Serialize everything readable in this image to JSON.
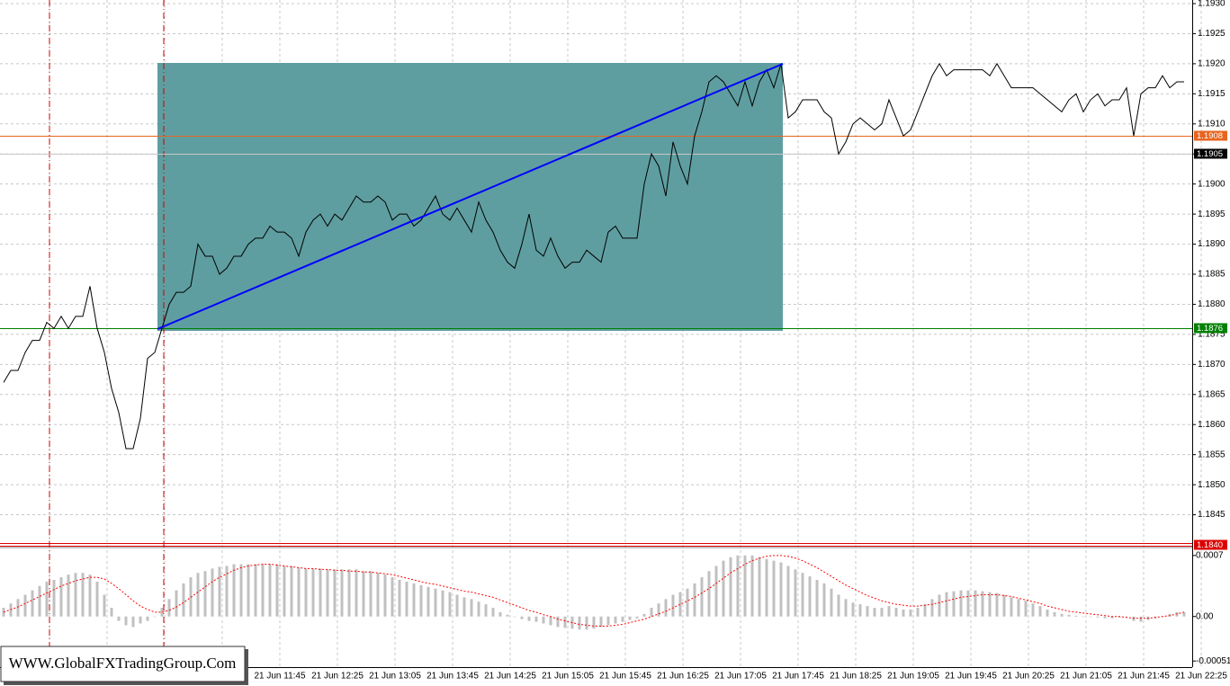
{
  "chart_data": {
    "type": "line",
    "categories": [
      null,
      null,
      null,
      null,
      null,
      null,
      null,
      null,
      null,
      null,
      null,
      null,
      null,
      null,
      null,
      null,
      null,
      null,
      null,
      null,
      null,
      null,
      null,
      null,
      null,
      null,
      null,
      null,
      null,
      null,
      null,
      null,
      null,
      null,
      null,
      "21 Jun 11:45",
      null,
      null,
      null,
      null,
      null,
      null,
      null,
      "21 Jun 12:25",
      null,
      null,
      null,
      null,
      null,
      null,
      null,
      "21 Jun 13:05",
      null,
      null,
      null,
      null,
      null,
      null,
      null,
      "21 Jun 13:45",
      null,
      null,
      null,
      null,
      null,
      null,
      null,
      "21 Jun 14:25",
      null,
      null,
      null,
      null,
      null,
      null,
      null,
      "21 Jun 15:05",
      null,
      null,
      null,
      null,
      null,
      null,
      null,
      "21 Jun 15:45",
      null,
      null,
      null,
      null,
      null,
      null,
      null,
      "21 Jun 16:25",
      null,
      null,
      null,
      null,
      null,
      null,
      null,
      "21 Jun 17:05",
      null,
      null,
      null,
      null,
      null,
      null,
      null,
      "21 Jun 17:45",
      null,
      null,
      null,
      null,
      null,
      null,
      null,
      "21 Jun 18:25",
      null,
      null,
      null,
      null,
      null,
      null,
      null,
      "21 Jun 19:05",
      null,
      null,
      null,
      null,
      null,
      null,
      null,
      "21 Jun 19:45",
      null,
      null,
      null,
      null,
      null,
      null,
      null,
      "21 Jun 20:25",
      null,
      null,
      null,
      null,
      null,
      null,
      null,
      "21 Jun 21:05",
      null,
      null,
      null,
      null,
      null,
      null,
      null,
      "21 Jun 21:45",
      null,
      null,
      null,
      null,
      null,
      null,
      null,
      "21 Jun 22:25",
      null
    ],
    "series": [
      {
        "color": "#000000",
        "values": [
          1.1867,
          1.1869,
          1.1869,
          1.1872,
          1.1874,
          1.1874,
          1.1877,
          1.1876,
          1.1878,
          1.1876,
          1.1878,
          1.1878,
          1.1883,
          1.1876,
          1.1872,
          1.1866,
          1.1862,
          1.1856,
          1.1856,
          1.1861,
          1.1871,
          1.1872,
          1.1876,
          1.188,
          1.1882,
          1.1882,
          1.1883,
          1.189,
          1.1888,
          1.1888,
          1.1885,
          1.1886,
          1.1888,
          1.1888,
          1.189,
          1.1891,
          1.1891,
          1.1893,
          1.1892,
          1.1892,
          1.1891,
          1.1888,
          1.1892,
          1.1894,
          1.1895,
          1.1893,
          1.1895,
          1.1894,
          1.1896,
          1.1898,
          1.1897,
          1.1897,
          1.1898,
          1.1897,
          1.1894,
          1.1895,
          1.1895,
          1.1893,
          1.1894,
          1.1896,
          1.1898,
          1.1895,
          1.1894,
          1.1896,
          1.1894,
          1.1892,
          1.1897,
          1.1894,
          1.1892,
          1.1889,
          1.1887,
          1.1886,
          1.189,
          1.1895,
          1.1889,
          1.1888,
          1.1891,
          1.1888,
          1.1886,
          1.1887,
          1.1887,
          1.1889,
          1.1888,
          1.1887,
          1.1892,
          1.1893,
          1.1891,
          1.1891,
          1.1891,
          1.19,
          1.1905,
          1.1903,
          1.1898,
          1.1907,
          1.1903,
          1.19,
          1.1908,
          1.1912,
          1.1917,
          1.1918,
          1.1917,
          1.1915,
          1.1913,
          1.1917,
          1.1913,
          1.1917,
          1.1919,
          1.1916,
          1.192,
          1.1911,
          1.1912,
          1.1914,
          1.1914,
          1.1914,
          1.1912,
          1.1911,
          1.1905,
          1.1907,
          1.191,
          1.1911,
          1.191,
          1.1909,
          1.191,
          1.1914,
          1.1911,
          1.1908,
          1.1909,
          1.1912,
          1.1915,
          1.1918,
          1.192,
          1.1918,
          1.1919,
          1.1919,
          1.1919,
          1.1919,
          1.1919,
          1.1918,
          1.192,
          1.1918,
          1.1916,
          1.1916,
          1.1916,
          1.1916,
          1.1915,
          1.1914,
          1.1913,
          1.1912,
          1.1914,
          1.1915,
          1.1912,
          1.1914,
          1.1915,
          1.1913,
          1.1914,
          1.1914,
          1.1916,
          1.1908,
          1.1915,
          1.1916,
          1.1916,
          1.1918,
          1.1916,
          1.1917,
          1.1917
        ]
      }
    ],
    "ylim": [
      1.184,
      1.19306
    ],
    "yticks": [
      {
        "value": 1.1845,
        "label": "1.1845"
      },
      {
        "value": 1.185,
        "label": "1.1850"
      },
      {
        "value": 1.1855,
        "label": "1.1855"
      },
      {
        "value": 1.186,
        "label": "1.1860"
      },
      {
        "value": 1.1865,
        "label": "1.1865"
      },
      {
        "value": 1.187,
        "label": "1.1870"
      },
      {
        "value": 1.1875,
        "label": "1.1875"
      },
      {
        "value": 1.188,
        "label": "1.1880"
      },
      {
        "value": 1.1885,
        "label": "1.1885"
      },
      {
        "value": 1.189,
        "label": "1.1890"
      },
      {
        "value": 1.1895,
        "label": "1.1895"
      },
      {
        "value": 1.19,
        "label": "1.1900"
      },
      {
        "value": 1.1905,
        "label": "1.1905"
      },
      {
        "value": 1.191,
        "label": "1.1910"
      },
      {
        "value": 1.1915,
        "label": "1.1915"
      },
      {
        "value": 1.192,
        "label": "1.1920"
      },
      {
        "value": 1.1925,
        "label": "1.1925"
      },
      {
        "value": 1.193,
        "label": "1.1930"
      }
    ],
    "grid": true,
    "levels": [
      {
        "value": 1.1908,
        "color": "#e8641e"
      },
      {
        "value": 1.1905,
        "color": "#c8c8c8",
        "label_color": "#000000"
      },
      {
        "value": 1.1876,
        "color": "#008000"
      },
      {
        "value": 1.184,
        "label": "1.1840",
        "color": "#dd0000"
      }
    ],
    "indicator": {
      "histogram": {
        "color": "#c0c0c0",
        "values": [
          0.0001,
          0.00015,
          0.0002,
          0.00025,
          0.0003,
          0.00035,
          0.0004,
          0.00042,
          0.00045,
          0.00048,
          0.0005,
          0.0005,
          0.00048,
          0.0004,
          0.00025,
          0.0001,
          -5e-05,
          -0.0001,
          -0.00012,
          -8e-05,
          -5e-05,
          0,
          0.0001,
          0.0002,
          0.0003,
          0.00038,
          0.00045,
          0.0005,
          0.00052,
          0.00055,
          0.00057,
          0.00058,
          0.0006,
          0.0006,
          0.0006,
          0.0006,
          0.0006,
          0.0006,
          0.0006,
          0.00058,
          0.00058,
          0.00056,
          0.00055,
          0.00055,
          0.00055,
          0.00054,
          0.00054,
          0.00054,
          0.00054,
          0.00054,
          0.00052,
          0.00052,
          0.0005,
          0.00048,
          0.00045,
          0.00042,
          0.0004,
          0.00038,
          0.00036,
          0.00034,
          0.00032,
          0.0003,
          0.00028,
          0.00025,
          0.00022,
          0.0002,
          0.00017,
          0.00014,
          0.0001,
          5e-05,
          2e-05,
          0,
          -3e-05,
          -5e-05,
          -6e-05,
          -8e-05,
          -0.0001,
          -0.00012,
          -0.00013,
          -0.00014,
          -0.00015,
          -0.00015,
          -0.00014,
          -0.00012,
          -0.0001,
          -8e-05,
          -6e-05,
          -4e-05,
          -2e-05,
          3e-05,
          0.0001,
          0.00015,
          0.0002,
          0.00025,
          0.00028,
          0.00032,
          0.00038,
          0.00045,
          0.00052,
          0.00058,
          0.00064,
          0.00068,
          0.0007,
          0.0007,
          0.0007,
          0.00068,
          0.00066,
          0.00064,
          0.00062,
          0.00058,
          0.00054,
          0.0005,
          0.00046,
          0.00042,
          0.00038,
          0.00032,
          0.00025,
          0.0002,
          0.00016,
          0.00014,
          0.00012,
          0.0001,
          0.0001,
          0.00012,
          0.0001,
          8e-05,
          8e-05,
          0.0001,
          0.00014,
          0.0002,
          0.00025,
          0.00028,
          0.00029,
          0.0003,
          0.0003,
          0.0003,
          0.00029,
          0.00028,
          0.00027,
          0.00025,
          0.00022,
          0.0002,
          0.00018,
          0.00015,
          0.00012,
          8e-05,
          5e-05,
          3e-05,
          2e-05,
          1e-05,
          0,
          0,
          -1e-05,
          -2e-05,
          -2e-05,
          -1e-05,
          0,
          -5e-05,
          -6e-05,
          -4e-05,
          -2e-05,
          0,
          3e-05,
          5e-05,
          5e-05
        ]
      },
      "signal": {
        "color": "#ff0000",
        "values": [
          5e-05,
          8e-05,
          0.00011,
          0.00015,
          0.00019,
          0.00023,
          0.00027,
          0.00031,
          0.00035,
          0.00038,
          0.00041,
          0.00043,
          0.00045,
          0.00045,
          0.00043,
          0.00038,
          0.00032,
          0.00025,
          0.00018,
          0.00012,
          8e-05,
          5e-05,
          5e-05,
          7e-05,
          0.00011,
          0.00016,
          0.00022,
          0.00028,
          0.00034,
          0.0004,
          0.00045,
          0.00049,
          0.00053,
          0.00056,
          0.00058,
          0.00059,
          0.0006,
          0.0006,
          0.00059,
          0.00058,
          0.00057,
          0.00056,
          0.00055,
          0.00055,
          0.00054,
          0.00054,
          0.00053,
          0.00053,
          0.00052,
          0.00052,
          0.00051,
          0.00051,
          0.0005,
          0.00049,
          0.00048,
          0.00046,
          0.00044,
          0.00042,
          0.0004,
          0.00038,
          0.00037,
          0.00035,
          0.00033,
          0.00031,
          0.00029,
          0.00028,
          0.00026,
          0.00024,
          0.00022,
          0.00019,
          0.00016,
          0.00013,
          0.0001,
          7e-05,
          5e-05,
          2e-05,
          0,
          -3e-05,
          -5e-05,
          -7e-05,
          -9e-05,
          -0.0001,
          -0.00011,
          -0.00011,
          -0.00011,
          -0.0001,
          -9e-05,
          -7e-05,
          -5e-05,
          -3e-05,
          0,
          3e-05,
          6e-05,
          0.0001,
          0.00014,
          0.00018,
          0.00022,
          0.00027,
          0.00032,
          0.00038,
          0.00044,
          0.0005,
          0.00055,
          0.0006,
          0.00064,
          0.00067,
          0.00069,
          0.0007,
          0.0007,
          0.00069,
          0.00067,
          0.00064,
          0.0006,
          0.00056,
          0.00051,
          0.00046,
          0.00041,
          0.00036,
          0.00032,
          0.00028,
          0.00024,
          0.00021,
          0.00018,
          0.00016,
          0.00014,
          0.00013,
          0.00012,
          0.00012,
          0.00013,
          0.00014,
          0.00016,
          0.00018,
          0.0002,
          0.00022,
          0.00023,
          0.00024,
          0.00025,
          0.00025,
          0.00025,
          0.00024,
          0.00023,
          0.00021,
          0.00019,
          0.00017,
          0.00015,
          0.00012,
          0.0001,
          8e-05,
          6e-05,
          5e-05,
          4e-05,
          3e-05,
          2e-05,
          1e-05,
          0,
          0,
          -1e-05,
          -2e-05,
          -2e-05,
          -2e-05,
          -1e-05,
          0,
          1e-05,
          3e-05,
          5e-05
        ]
      },
      "ylim": [
        -0.00058,
        0.00076
      ],
      "yticks": [
        {
          "value": -0.00051,
          "label": "-0.00051"
        },
        {
          "value": 0,
          "label": "0.00"
        },
        0.0007
      ]
    },
    "watermark": "WWW.GlobalFXTradingGroup.Com"
  }
}
